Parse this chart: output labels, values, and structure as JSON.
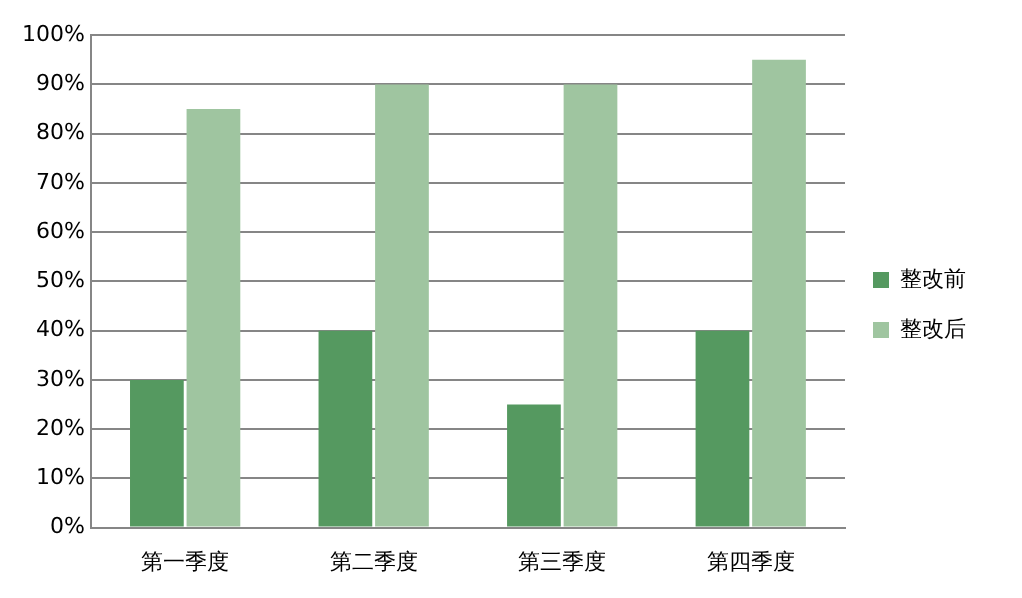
{
  "chart_data": {
    "type": "bar",
    "categories": [
      "第一季度",
      "第二季度",
      "第三季度",
      "第四季度"
    ],
    "series": [
      {
        "name": "整改前",
        "color": "#559960",
        "values": [
          30,
          40,
          25,
          40
        ]
      },
      {
        "name": "整改后",
        "color": "#9fc5a0",
        "values": [
          85,
          90,
          90,
          95
        ]
      }
    ],
    "ylim": [
      0,
      100
    ],
    "yticks": [
      {
        "value": 0,
        "label": "0%"
      },
      {
        "value": 10,
        "label": "10%"
      },
      {
        "value": 20,
        "label": "20%"
      },
      {
        "value": 30,
        "label": "30%"
      },
      {
        "value": 40,
        "label": "40%"
      },
      {
        "value": 50,
        "label": "50%"
      },
      {
        "value": 60,
        "label": "60%"
      },
      {
        "value": 70,
        "label": "70%"
      },
      {
        "value": 80,
        "label": "80%"
      },
      {
        "value": 90,
        "label": "90%"
      },
      {
        "value": 100,
        "label": "100%"
      }
    ],
    "grid": "y",
    "legend": "right"
  }
}
